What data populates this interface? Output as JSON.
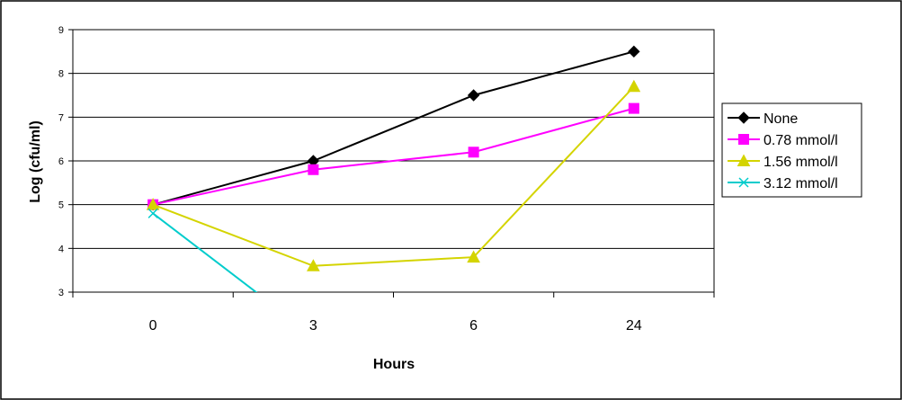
{
  "chart_data": {
    "type": "line",
    "title": "",
    "xlabel": "Hours",
    "ylabel": "Log (cfu/ml)",
    "categories": [
      "0",
      "3",
      "6",
      "24"
    ],
    "yticks": [
      3,
      4,
      5,
      6,
      7,
      8,
      9
    ],
    "ylim": [
      3,
      9
    ],
    "grid": true,
    "legend_position": "right",
    "series": [
      {
        "name": "None",
        "values": [
          5.0,
          6.0,
          7.5,
          8.5
        ],
        "color": "#000000",
        "marker": "diamond"
      },
      {
        "name": "0.78 mmol/l",
        "values": [
          5.0,
          5.8,
          6.2,
          7.2
        ],
        "color": "#ff00ff",
        "marker": "square"
      },
      {
        "name": "1.56 mmol/l",
        "values": [
          5.0,
          3.6,
          3.8,
          7.7
        ],
        "color": "#d4d400",
        "marker": "triangle"
      },
      {
        "name": "3.12 mmol/l",
        "values": [
          4.8,
          2.0,
          null,
          null
        ],
        "color": "#00cccc",
        "marker": "x"
      }
    ]
  }
}
